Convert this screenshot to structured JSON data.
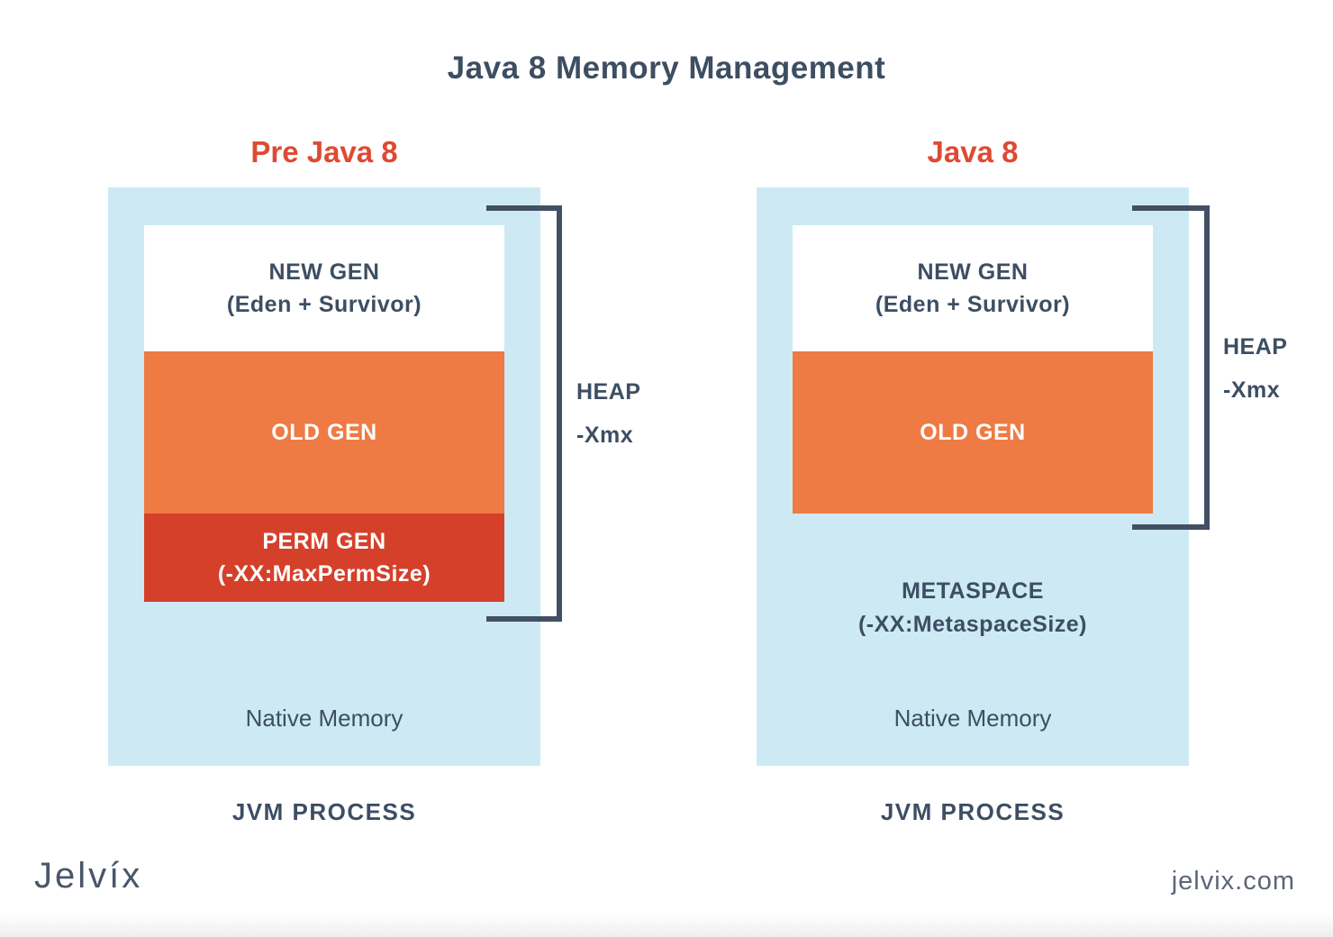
{
  "title": "Java 8 Memory Management",
  "left": {
    "heading": "Pre Java 8",
    "new_gen_line1": "NEW GEN",
    "new_gen_line2": "(Eden + Survivor)",
    "old_gen": "OLD GEN",
    "perm_gen_line1": "PERM GEN",
    "perm_gen_line2": "(-XX:MaxPermSize)",
    "heap_label": "HEAP",
    "heap_flag": "-Xmx",
    "native_memory": "Native Memory",
    "process": "JVM PROCESS"
  },
  "right": {
    "heading": "Java 8",
    "new_gen_line1": "NEW GEN",
    "new_gen_line2": "(Eden + Survivor)",
    "old_gen": "OLD GEN",
    "metaspace_line1": "METASPACE",
    "metaspace_line2": "(-XX:MetaspaceSize)",
    "heap_label": "HEAP",
    "heap_flag": "-Xmx",
    "native_memory": "Native Memory",
    "process": "JVM PROCESS"
  },
  "footer": {
    "logo": "Jelvíx",
    "website": "jelvix.com"
  },
  "colors": {
    "title_text": "#3d4e63",
    "heading_red": "#de4a33",
    "container_blue": "#cdeaf4",
    "old_gen_orange": "#ee7b44",
    "perm_gen_red": "#d5402a",
    "bracket": "#434f63",
    "footer_gray": "#5d6677",
    "logo_gray": "#4a5568"
  }
}
